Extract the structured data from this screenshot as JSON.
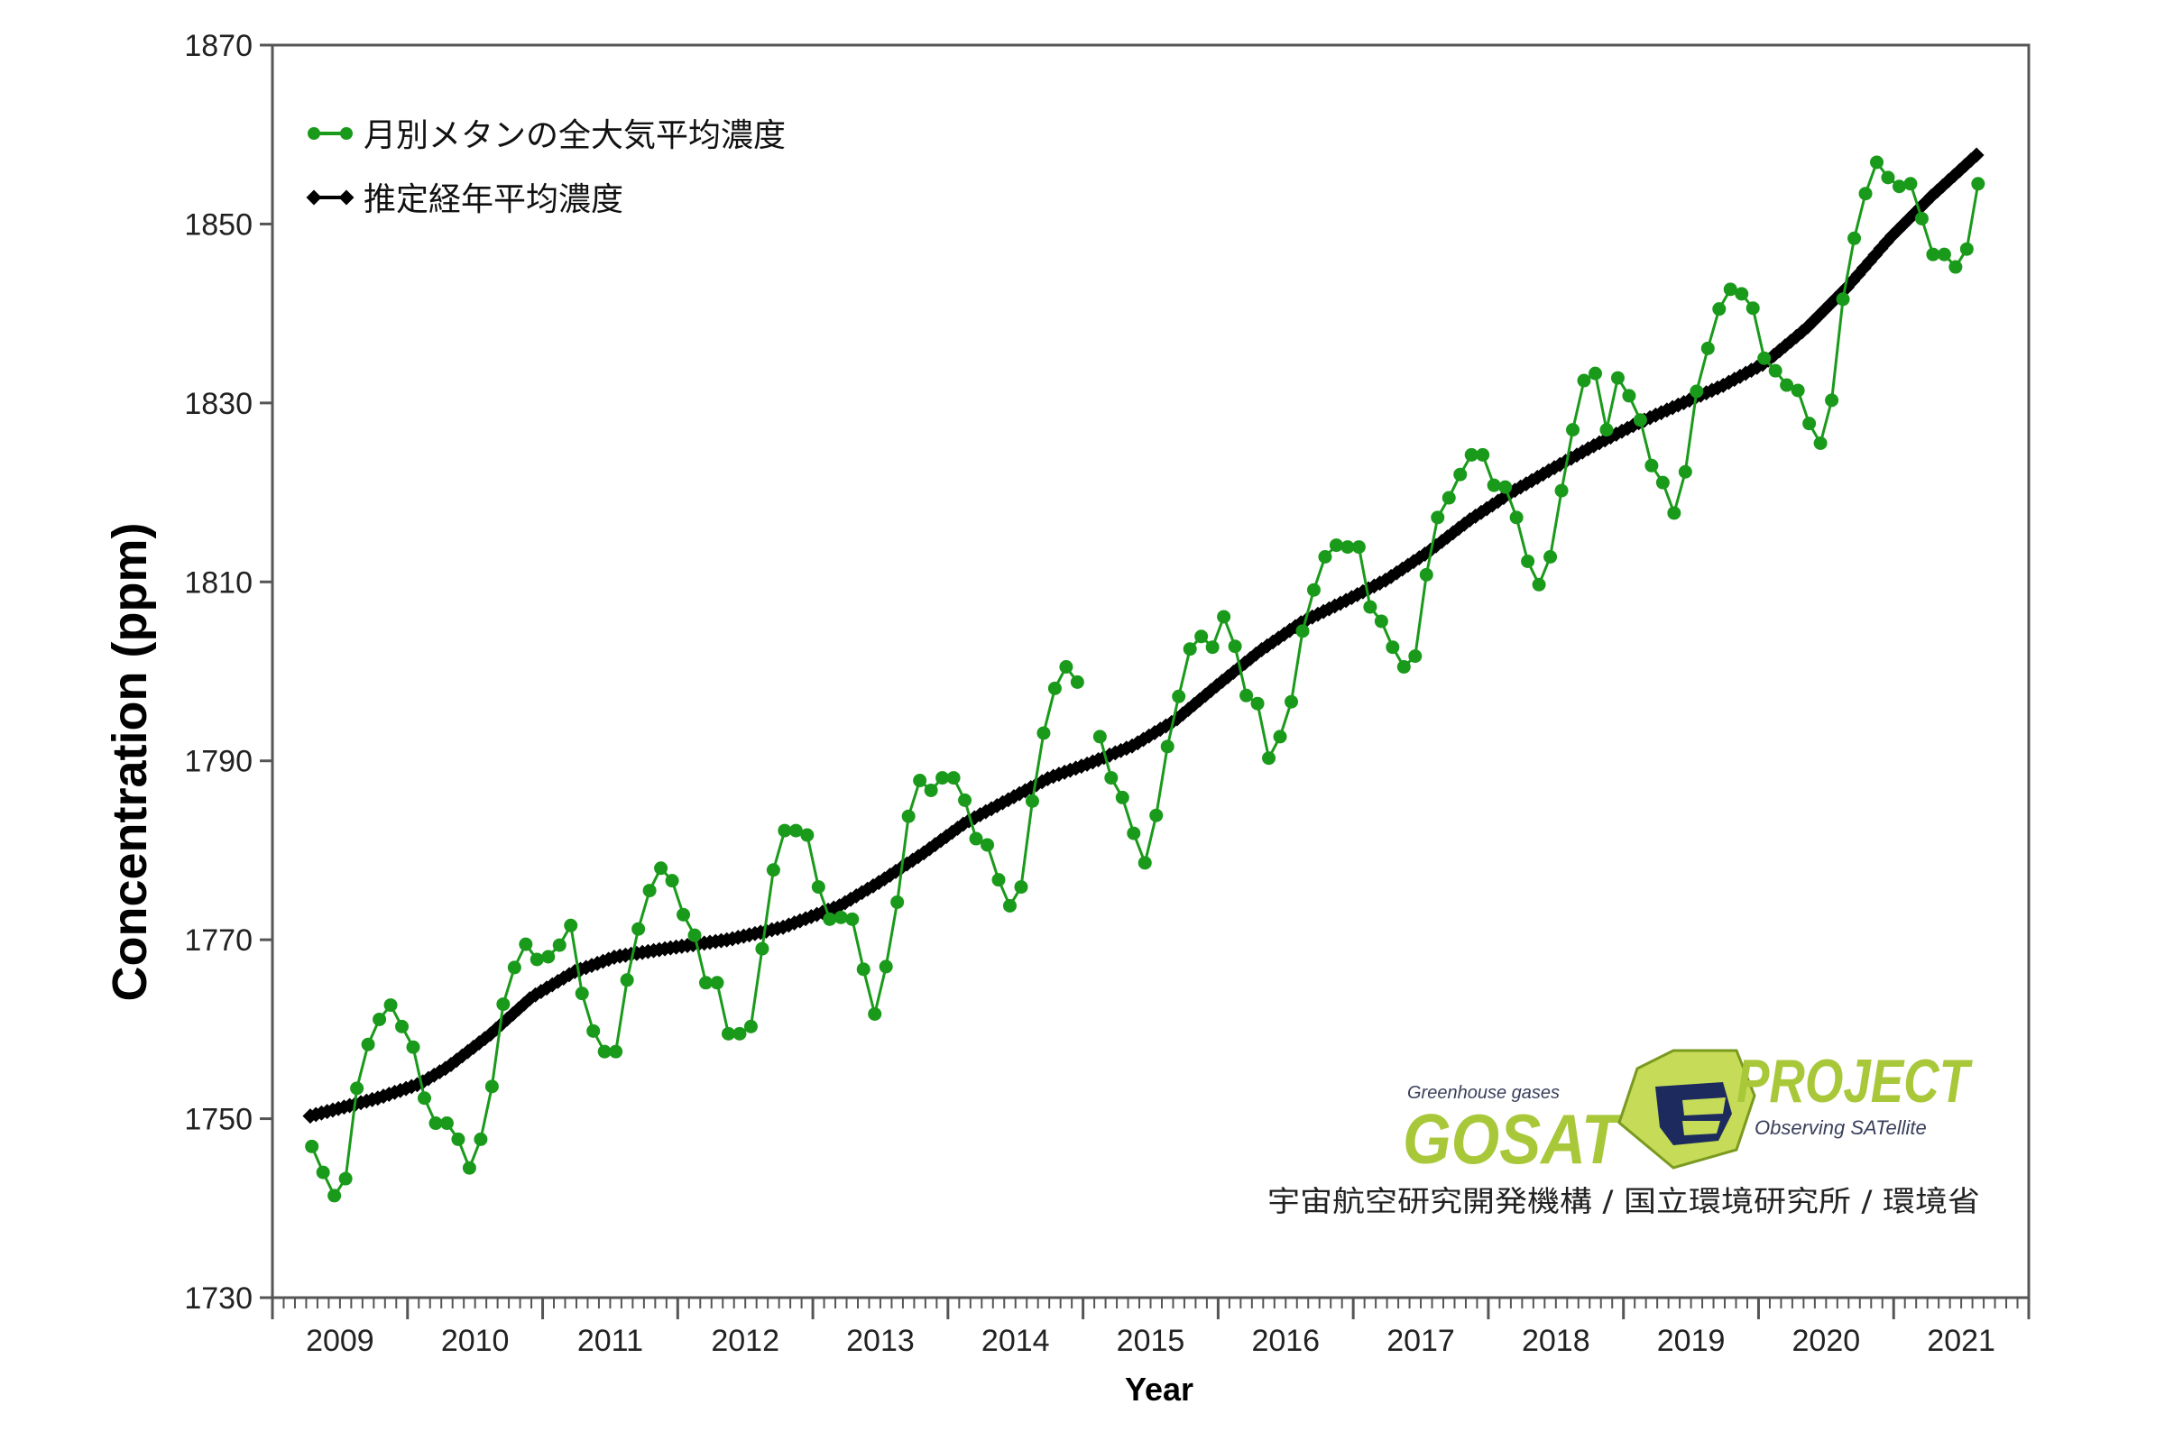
{
  "chart_data": {
    "type": "line",
    "title": "",
    "xlabel": "Year",
    "ylabel": "Concentration (ppm)",
    "xlim": [
      2009,
      2022
    ],
    "ylim": [
      1730,
      1870
    ],
    "grid": false,
    "legend_position": "top-left",
    "y_ticks": [
      "1730",
      "1750",
      "1770",
      "1790",
      "1810",
      "1830",
      "1850",
      "1870"
    ],
    "x_ticks": [
      "2009",
      "2010",
      "2011",
      "2012",
      "2013",
      "2014",
      "2015",
      "2016",
      "2017",
      "2018",
      "2019",
      "2020",
      "2021"
    ],
    "series": [
      {
        "name": "月別メタンの全大気平均濃度",
        "color": "#1a9a1a",
        "start_year": 2009,
        "start_month": 4,
        "monthly_values": [
          1746.9,
          1744,
          1741.4,
          1743.3,
          1753.4,
          1758.3,
          1761.1,
          1762.7,
          1760.3,
          1758,
          1752.3,
          1749.5,
          1749.5,
          1747.7,
          1744.5,
          1747.7,
          1753.6,
          1762.8,
          1766.9,
          1769.5,
          1767.8,
          1768.1,
          1769.4,
          1771.6,
          1764,
          1759.8,
          1757.5,
          1757.5,
          1765.5,
          1771.2,
          1775.5,
          1778,
          1776.6,
          1772.8,
          1770.5,
          1765.2,
          1765.2,
          1759.5,
          1759.5,
          1760.3,
          1769,
          1777.8,
          1782.2,
          1782.2,
          1781.7,
          1775.9,
          1772.3,
          1772.5,
          1772.3,
          1766.7,
          1761.7,
          1767,
          1774.2,
          1783.8,
          1787.8,
          1786.7,
          1788.1,
          1788.1,
          1785.6,
          1781.3,
          1780.6,
          1776.7,
          1773.8,
          1775.9,
          1785.5,
          1793.1,
          1798.1,
          1800.5,
          1798.8,
          null,
          1792.7,
          1788.1,
          1785.9,
          1781.9,
          1778.6,
          1783.9,
          1791.6,
          1797.2,
          1802.5,
          1803.9,
          1802.7,
          1806.1,
          1802.8,
          1797.3,
          1796.4,
          1790.3,
          1792.7,
          1796.6,
          1804.5,
          1809.1,
          1812.8,
          1814.1,
          1813.9,
          1813.9,
          1807.2,
          1805.6,
          1802.7,
          1800.5,
          1801.7,
          1810.8,
          1817.2,
          1819.4,
          1822,
          1824.2,
          1824.2,
          1820.8,
          1820.6,
          1817.2,
          1812.3,
          1809.7,
          1812.8,
          1820.2,
          1827,
          1832.5,
          1833.3,
          1827,
          1832.8,
          1830.8,
          1828.1,
          1823,
          1821.1,
          1817.7,
          1822.3,
          1831.3,
          1836.1,
          1840.5,
          1842.7,
          1842.2,
          1840.6,
          1835,
          1833.6,
          1832,
          1831.4,
          1827.7,
          1825.5,
          1830.3,
          1841.6,
          1848.4,
          1853.4,
          1856.9,
          1855.2,
          1854.2,
          1854.5,
          1850.6,
          1846.6,
          1846.6,
          1845.2,
          1847.2,
          1854.5
        ]
      },
      {
        "name": "推定経年平均濃度",
        "color": "#000000",
        "x": [
          2009.28,
          2009.78,
          2010.09,
          2010.3,
          2010.61,
          2010.92,
          2011.23,
          2011.54,
          2011.95,
          2012.37,
          2012.78,
          2013.2,
          2013.51,
          2013.82,
          2014.13,
          2014.44,
          2014.75,
          2015.06,
          2015.37,
          2015.68,
          2015.99,
          2016.31,
          2016.62,
          2016.93,
          2017.24,
          2017.55,
          2017.86,
          2018.17,
          2018.48,
          2018.79,
          2019.1,
          2019.41,
          2019.73,
          2020.04,
          2020.35,
          2020.66,
          2020.97,
          2021.28,
          2021.62
        ],
        "y": [
          1750.3,
          1752.3,
          1753.9,
          1755.8,
          1759.4,
          1763.6,
          1766.4,
          1768.1,
          1769.1,
          1770,
          1771.4,
          1773.8,
          1776.6,
          1779.7,
          1783.1,
          1785.6,
          1788.1,
          1789.8,
          1791.7,
          1794.5,
          1798.4,
          1802.3,
          1805.5,
          1807.8,
          1810.2,
          1813.3,
          1816.9,
          1820,
          1822.7,
          1825.3,
          1827.7,
          1829.8,
          1831.9,
          1834.4,
          1838.3,
          1843,
          1848.4,
          1853.1,
          1857.8
        ]
      }
    ]
  },
  "logo": {
    "tagline": "Greenhouse gases",
    "name": "GOSAT",
    "project": "PROJECT",
    "subtitle": "Observing SATellite",
    "credits": "宇宙航空研究開発機構 / 国立環境研究所 / 環境省",
    "color_green": "#a8c83a",
    "color_navy": "#1c2a5e"
  }
}
